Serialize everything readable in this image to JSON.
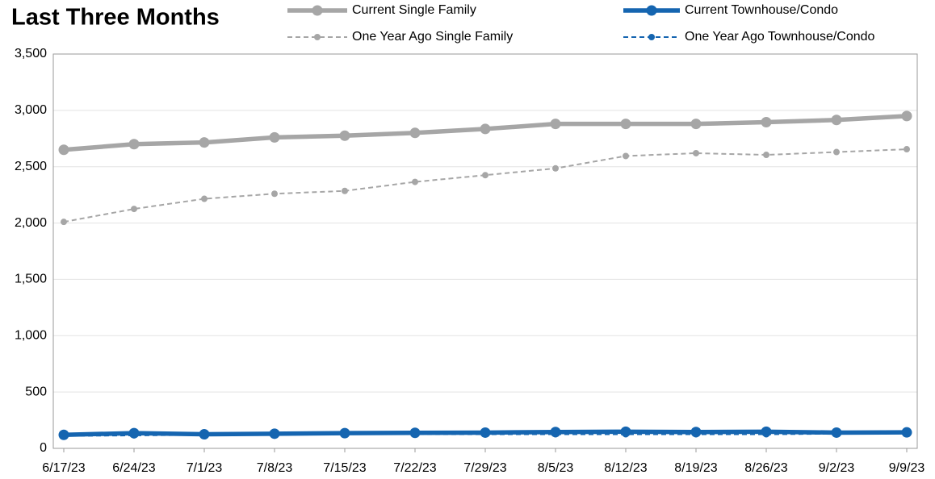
{
  "chart_data": {
    "type": "line",
    "title": "Last Three Months",
    "categories": [
      "6/17/23",
      "6/24/23",
      "7/1/23",
      "7/8/23",
      "7/15/23",
      "7/22/23",
      "7/29/23",
      "8/5/23",
      "8/12/23",
      "8/19/23",
      "8/26/23",
      "9/2/23",
      "9/9/23"
    ],
    "series": [
      {
        "name": "Current Single Family",
        "color": "#a6a6a6",
        "line_style": "solid",
        "values": [
          2650,
          2700,
          2715,
          2760,
          2775,
          2800,
          2835,
          2880,
          2880,
          2880,
          2895,
          2915,
          2950
        ]
      },
      {
        "name": "Current Townhouse/Condo",
        "color": "#1565b0",
        "line_style": "solid",
        "values": [
          120,
          135,
          125,
          130,
          135,
          138,
          140,
          145,
          148,
          145,
          148,
          140,
          142
        ]
      },
      {
        "name": "One Year Ago Single Family",
        "color": "#a6a6a6",
        "line_style": "dashed",
        "values": [
          2010,
          2125,
          2215,
          2260,
          2285,
          2365,
          2425,
          2485,
          2595,
          2620,
          2605,
          2630,
          2655
        ]
      },
      {
        "name": "One Year Ago Townhouse/Condo",
        "color": "#1565b0",
        "line_style": "dashed",
        "values": [
          110,
          115,
          120,
          125,
          128,
          125,
          125,
          125,
          125,
          125,
          125,
          130,
          135
        ]
      }
    ],
    "ylim": [
      0,
      3500
    ],
    "yticks": [
      {
        "value": 0,
        "label": "0"
      },
      {
        "value": 500,
        "label": "500"
      },
      {
        "value": 1000,
        "label": "1,000"
      },
      {
        "value": 1500,
        "label": "1,500"
      },
      {
        "value": 2000,
        "label": "2,000"
      },
      {
        "value": 2500,
        "label": "2,500"
      },
      {
        "value": 3000,
        "label": "3,000"
      },
      {
        "value": 3500,
        "label": "3,500"
      }
    ],
    "grid": true,
    "legend": "top"
  }
}
